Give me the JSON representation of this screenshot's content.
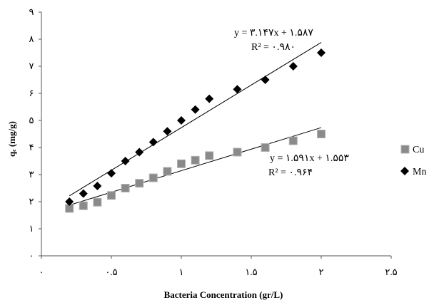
{
  "chart_data": {
    "type": "scatter",
    "xlabel": "Bacteria Concentration (gr/L)",
    "ylabel": "qₑ (mg/g)",
    "xlim": [
      0,
      2.5
    ],
    "ylim": [
      0,
      9
    ],
    "x_ticks": [
      0,
      0.5,
      1,
      1.5,
      2,
      2.5
    ],
    "y_ticks": [
      0,
      1,
      2,
      3,
      4,
      5,
      6,
      7,
      8,
      9
    ],
    "x_tick_labels": [
      "۰",
      "۰.۵",
      "۱",
      "۱.۵",
      "۲",
      "۲.۵"
    ],
    "y_tick_labels": [
      "۰",
      "۱",
      "۲",
      "۳",
      "۴",
      "۵",
      "۶",
      "۷",
      "۸",
      "۹"
    ],
    "grid": false,
    "legend_position": "right",
    "series": [
      {
        "name": "Cu",
        "marker": "square",
        "color": "#8a8a8a",
        "x": [
          0.2,
          0.3,
          0.4,
          0.5,
          0.6,
          0.7,
          0.8,
          0.9,
          1.0,
          1.1,
          1.2,
          1.4,
          1.6,
          1.8,
          2.0
        ],
        "y": [
          1.75,
          1.85,
          1.98,
          2.23,
          2.5,
          2.68,
          2.88,
          3.12,
          3.4,
          3.53,
          3.7,
          3.83,
          4.0,
          4.25,
          4.5
        ],
        "trendline": {
          "slope": 1.591,
          "intercept": 1.553
        },
        "equation": "y = ۱.۵۹۱x + ۱.۵۵۳",
        "r2": "R² = ۰.۹۶۴"
      },
      {
        "name": "Mn",
        "marker": "diamond",
        "color": "#000000",
        "x": [
          0.2,
          0.3,
          0.4,
          0.5,
          0.6,
          0.7,
          0.8,
          0.9,
          1.0,
          1.1,
          1.2,
          1.4,
          1.6,
          1.8,
          2.0
        ],
        "y": [
          2.0,
          2.3,
          2.58,
          3.05,
          3.5,
          3.83,
          4.2,
          4.6,
          5.0,
          5.4,
          5.8,
          6.15,
          6.5,
          7.0,
          7.5
        ],
        "trendline": {
          "slope": 3.147,
          "intercept": 1.587
        },
        "equation": "y = ۳.۱۴۷x + ۱.۵۸۷",
        "r2": "R² = ۰.۹۸۰"
      }
    ]
  }
}
